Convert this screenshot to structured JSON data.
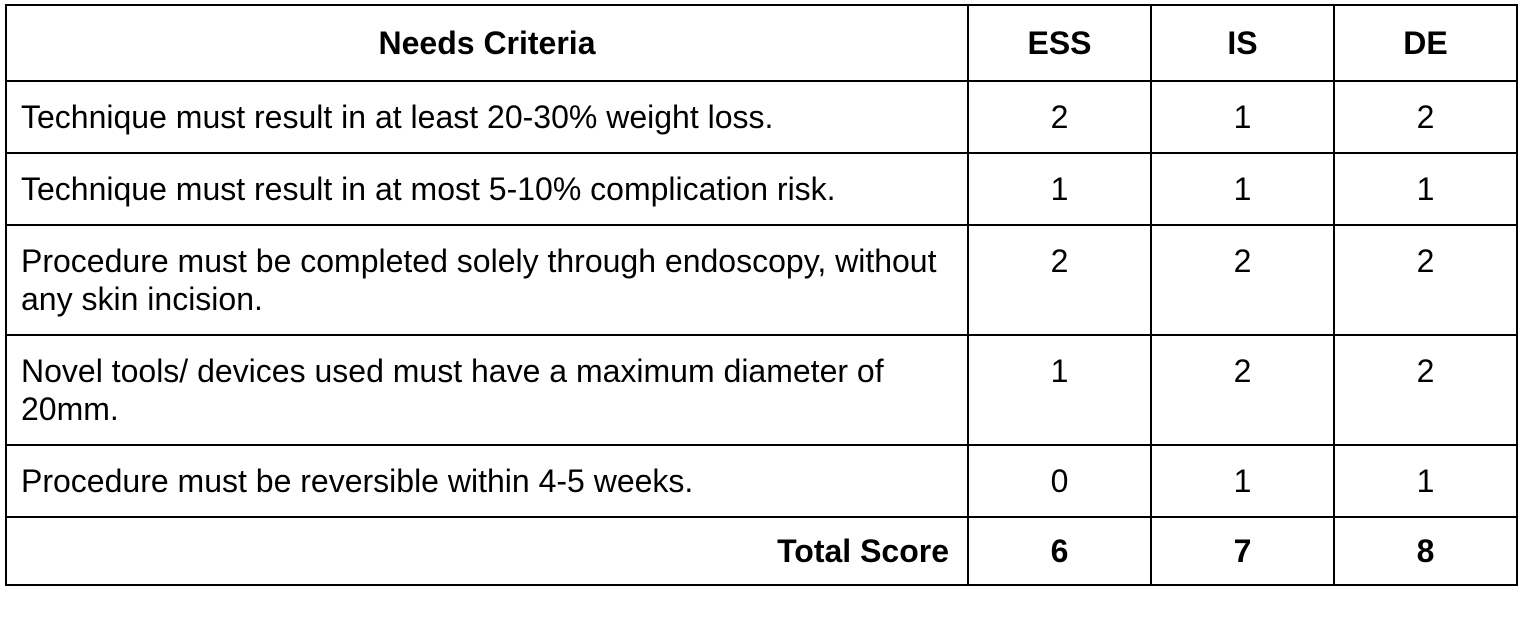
{
  "table": {
    "columns": [
      "Needs Criteria",
      "ESS",
      "IS",
      "DE"
    ],
    "rows": [
      {
        "criterion": "Technique must result in at least 20-30% weight loss.",
        "ess": "2",
        "is": "1",
        "de": "2"
      },
      {
        "criterion": "Technique must result in at most 5-10% complication risk.",
        "ess": "1",
        "is": "1",
        "de": "1"
      },
      {
        "criterion": "Procedure must be completed solely through endoscopy, without any skin incision.",
        "ess": "2",
        "is": "2",
        "de": "2"
      },
      {
        "criterion": "Novel tools/ devices used must have a maximum diameter of 20mm.",
        "ess": "1",
        "is": "2",
        "de": "2"
      },
      {
        "criterion": "Procedure must be reversible within 4-5 weeks.",
        "ess": "0",
        "is": "1",
        "de": "1"
      }
    ],
    "total": {
      "label": "Total Score",
      "ess": "6",
      "is": "7",
      "de": "8"
    }
  }
}
